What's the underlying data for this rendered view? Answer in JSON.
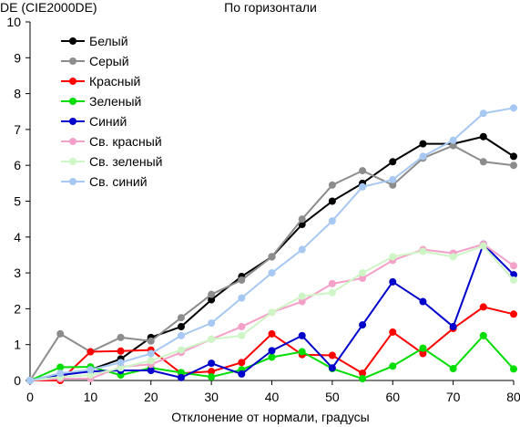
{
  "chart_data": {
    "type": "line",
    "title": "По горизонтали",
    "ylabel": "DE (CIE2000DE)",
    "xlabel": "Отклонение от нормали, градусы",
    "xlim": [
      0,
      80
    ],
    "ylim": [
      0,
      10
    ],
    "x_ticks": [
      "0",
      "10",
      "20",
      "30",
      "40",
      "50",
      "60",
      "70",
      "80"
    ],
    "y_ticks": [
      "0",
      "1",
      "2",
      "3",
      "4",
      "5",
      "6",
      "7",
      "8",
      "9",
      "10"
    ],
    "grid": false,
    "legend_position": "top-left",
    "x": [
      0,
      5,
      10,
      15,
      20,
      25,
      30,
      35,
      40,
      45,
      50,
      55,
      60,
      65,
      70,
      75,
      80
    ],
    "series": [
      {
        "name": "Белый",
        "color": "#000000",
        "values": [
          0,
          0.15,
          0.3,
          0.6,
          1.2,
          1.5,
          2.25,
          2.9,
          3.45,
          4.35,
          5.0,
          5.5,
          6.1,
          6.6,
          6.6,
          6.8,
          6.25
        ]
      },
      {
        "name": "Серый",
        "color": "#8c8c8c",
        "values": [
          0,
          1.3,
          0.8,
          1.2,
          1.1,
          1.75,
          2.4,
          2.8,
          3.45,
          4.5,
          5.45,
          5.85,
          5.45,
          6.2,
          6.55,
          6.1,
          6.0
        ]
      },
      {
        "name": "Красный",
        "color": "#ff0000",
        "values": [
          0,
          0,
          0.8,
          0.82,
          0.85,
          0.2,
          0.25,
          0.5,
          1.3,
          0.72,
          0.7,
          0.2,
          1.35,
          0.75,
          1.45,
          2.05,
          1.85
        ]
      },
      {
        "name": "Зеленый",
        "color": "#00dd00",
        "values": [
          0,
          0.37,
          0.38,
          0.15,
          0.35,
          0.22,
          0.1,
          0.3,
          0.65,
          0.8,
          0.33,
          0.05,
          0.4,
          0.9,
          0.33,
          1.25,
          0.32
        ]
      },
      {
        "name": "Синий",
        "color": "#0000cc",
        "values": [
          0,
          0.15,
          0.25,
          0.28,
          0.28,
          0.08,
          0.48,
          0.18,
          0.83,
          1.25,
          0.35,
          1.55,
          2.75,
          2.2,
          1.5,
          3.8,
          2.95
        ]
      },
      {
        "name": "Св. красный",
        "color": "#f4a0c8",
        "values": [
          0,
          0.05,
          0.05,
          0.38,
          0.45,
          0.78,
          1.15,
          1.5,
          1.9,
          2.2,
          2.7,
          2.85,
          3.35,
          3.65,
          3.55,
          3.8,
          3.2
        ]
      },
      {
        "name": "Св. зеленый",
        "color": "#cdf5c5",
        "values": [
          0,
          0.1,
          0.15,
          0.35,
          0.55,
          0.85,
          1.15,
          1.25,
          1.9,
          2.35,
          2.45,
          3.0,
          3.45,
          3.6,
          3.45,
          3.75,
          2.8
        ]
      },
      {
        "name": "Св. синий",
        "color": "#a6c8f2",
        "values": [
          0,
          0.2,
          0.3,
          0.5,
          0.75,
          1.25,
          1.6,
          2.3,
          3.0,
          3.65,
          4.45,
          5.4,
          5.6,
          6.25,
          6.7,
          7.45,
          7.6
        ]
      }
    ]
  }
}
